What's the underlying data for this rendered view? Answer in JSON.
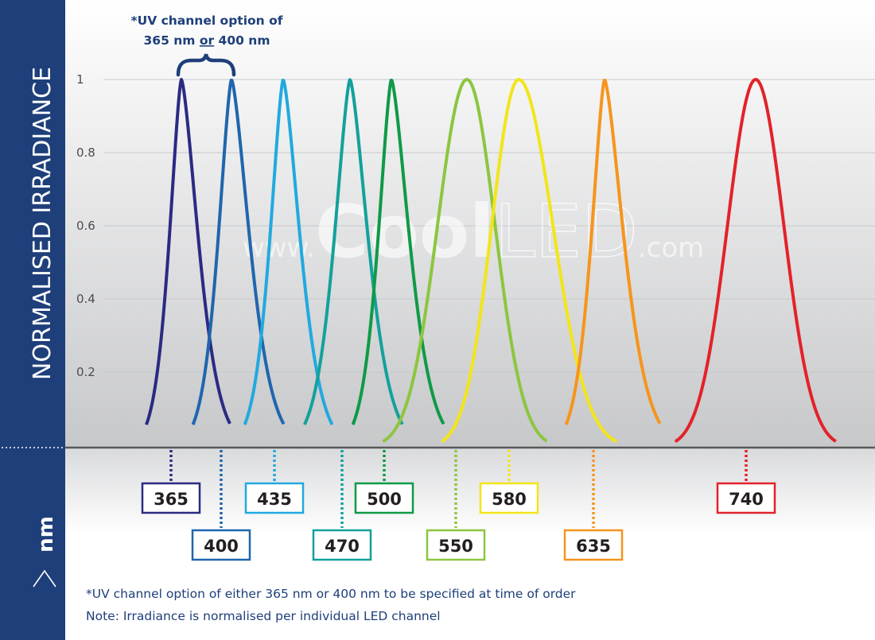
{
  "chart_data": {
    "type": "line",
    "ylabel": "NORMALISED IRRADIANCE",
    "xlabel": "nm",
    "y_ticks": [
      "1",
      "0.8",
      "0.6",
      "0.4",
      "0.2"
    ],
    "ylim": [
      0,
      1
    ],
    "grid": true,
    "callout": {
      "line1": "*UV channel option of",
      "line2_prefix": "365 nm ",
      "line2_or": "or",
      "line2_suffix": " 400 nm"
    },
    "watermark": {
      "prefix": "www.",
      "brand_bold": "Cool",
      "brand_light": "LED",
      "suffix": ".com"
    },
    "series": [
      {
        "name": "365",
        "peak_nm": 365,
        "color": "#2b2a83",
        "label_row": 1
      },
      {
        "name": "400",
        "peak_nm": 400,
        "color": "#1f66ad",
        "label_row": 2
      },
      {
        "name": "435",
        "peak_nm": 435,
        "color": "#22a9df",
        "label_row": 1
      },
      {
        "name": "470",
        "peak_nm": 470,
        "color": "#13a19b",
        "label_row": 2
      },
      {
        "name": "500",
        "peak_nm": 500,
        "color": "#0f9a47",
        "label_row": 1
      },
      {
        "name": "550",
        "peak_nm": 550,
        "color": "#8cc63f",
        "label_row": 2
      },
      {
        "name": "580",
        "peak_nm": 580,
        "color": "#f2e51a",
        "label_row": 1
      },
      {
        "name": "635",
        "peak_nm": 635,
        "color": "#f7941d",
        "label_row": 2
      },
      {
        "name": "740",
        "peak_nm": 740,
        "color": "#e3222a",
        "label_row": 1
      }
    ]
  },
  "notes": {
    "line1": "*UV channel option of either 365 nm or 400 nm to be specified at time of order",
    "line2": "Note: Irradiance is normalised per individual LED channel"
  },
  "colors": {
    "side_band": "#1e3f7a",
    "text_blue": "#1e3f7a"
  }
}
